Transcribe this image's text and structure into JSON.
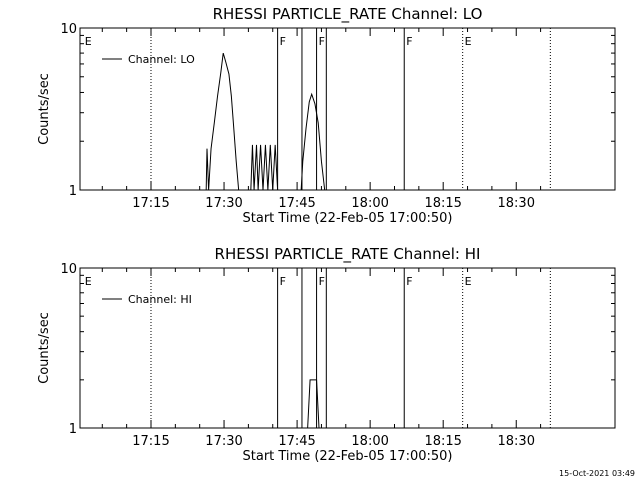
{
  "footer": "15-Oct-2021 03:49",
  "chart_data": [
    {
      "type": "line",
      "title": "RHESSI PARTICLE_RATE Channel: LO",
      "xlabel": "Start Time (22-Feb-05 17:00:50)",
      "ylabel": "Counts/sec",
      "y_scale": "log",
      "ylim": [
        1,
        10
      ],
      "y_ticks": [
        "1",
        "10"
      ],
      "x_range_minutes": [
        0,
        65.5
      ],
      "x_ticks": [
        {
          "label": "17:15",
          "minute": 15
        },
        {
          "label": "17:30",
          "minute": 30
        },
        {
          "label": "17:45",
          "minute": 45
        },
        {
          "label": "18:00",
          "minute": 60
        },
        {
          "label": "18:15",
          "minute": 75
        },
        {
          "label": "18:30",
          "minute": 90
        }
      ],
      "legend": "Channel: LO",
      "legend_position": "top-left",
      "events": [
        {
          "label": "E",
          "time": "17:01"
        },
        {
          "label": "",
          "time": "17:15"
        },
        {
          "label": "F",
          "time": "17:41"
        },
        {
          "label": "",
          "time": "17:46"
        },
        {
          "label": "F",
          "time": "17:49"
        },
        {
          "label": "",
          "time": "17:51"
        },
        {
          "label": "F",
          "time": "18:07"
        },
        {
          "label": "E",
          "time": "18:19"
        },
        {
          "label": "",
          "time": "18:37"
        }
      ],
      "series": [
        {
          "points": [
            [
              "17:26:20",
              1
            ],
            [
              "17:26:30",
              1.8
            ],
            [
              "17:26:50",
              1
            ],
            [
              "17:27:20",
              1.8
            ],
            [
              "17:28:00",
              2.6
            ],
            [
              "17:28:40",
              3.8
            ],
            [
              "17:29:20",
              5.3
            ],
            [
              "17:29:50",
              7.0
            ],
            [
              "17:30:20",
              6.2
            ],
            [
              "17:31:00",
              5.2
            ],
            [
              "17:31:30",
              3.8
            ],
            [
              "17:32:00",
              2.4
            ],
            [
              "17:32:30",
              1.5
            ],
            [
              "17:33:00",
              1
            ],
            [
              "17:35:30",
              1
            ],
            [
              "17:35:50",
              1.9
            ],
            [
              "17:36:10",
              1
            ],
            [
              "17:36:40",
              1.9
            ],
            [
              "17:37:00",
              1
            ],
            [
              "17:37:30",
              1.9
            ],
            [
              "17:38:00",
              1
            ],
            [
              "17:38:30",
              1.9
            ],
            [
              "17:39:00",
              1
            ],
            [
              "17:39:30",
              1.9
            ],
            [
              "17:40:00",
              1
            ],
            [
              "17:40:30",
              1.9
            ],
            [
              "17:41:00",
              1
            ],
            [
              "17:45:50",
              1
            ],
            [
              "17:46:10",
              1.5
            ],
            [
              "17:46:50",
              2.4
            ],
            [
              "17:47:30",
              3.5
            ],
            [
              "17:48:00",
              3.9
            ],
            [
              "17:48:40",
              3.4
            ],
            [
              "17:49:20",
              2.6
            ],
            [
              "17:50:00",
              1.5
            ],
            [
              "17:50:40",
              1
            ]
          ]
        }
      ]
    },
    {
      "type": "line",
      "title": "RHESSI PARTICLE_RATE Channel: HI",
      "xlabel": "Start Time (22-Feb-05 17:00:50)",
      "ylabel": "Counts/sec",
      "y_scale": "log",
      "ylim": [
        1,
        10
      ],
      "y_ticks": [
        "1",
        "10"
      ],
      "x_range_minutes": [
        0,
        65.5
      ],
      "x_ticks": [
        {
          "label": "17:15",
          "minute": 15
        },
        {
          "label": "17:30",
          "minute": 30
        },
        {
          "label": "17:45",
          "minute": 45
        },
        {
          "label": "18:00",
          "minute": 60
        },
        {
          "label": "18:15",
          "minute": 75
        },
        {
          "label": "18:30",
          "minute": 90
        }
      ],
      "legend": "Channel: HI",
      "legend_position": "top-left",
      "events": [
        {
          "label": "E",
          "time": "17:01"
        },
        {
          "label": "",
          "time": "17:15"
        },
        {
          "label": "F",
          "time": "17:41"
        },
        {
          "label": "",
          "time": "17:46"
        },
        {
          "label": "F",
          "time": "17:49"
        },
        {
          "label": "",
          "time": "17:51"
        },
        {
          "label": "F",
          "time": "18:07"
        },
        {
          "label": "E",
          "time": "18:19"
        },
        {
          "label": "",
          "time": "18:37"
        }
      ],
      "series": [
        {
          "points": [
            [
              "17:47:10",
              1
            ],
            [
              "17:47:40",
              2.0
            ],
            [
              "17:49:00",
              2.0
            ],
            [
              "17:49:30",
              1
            ]
          ]
        }
      ]
    }
  ]
}
